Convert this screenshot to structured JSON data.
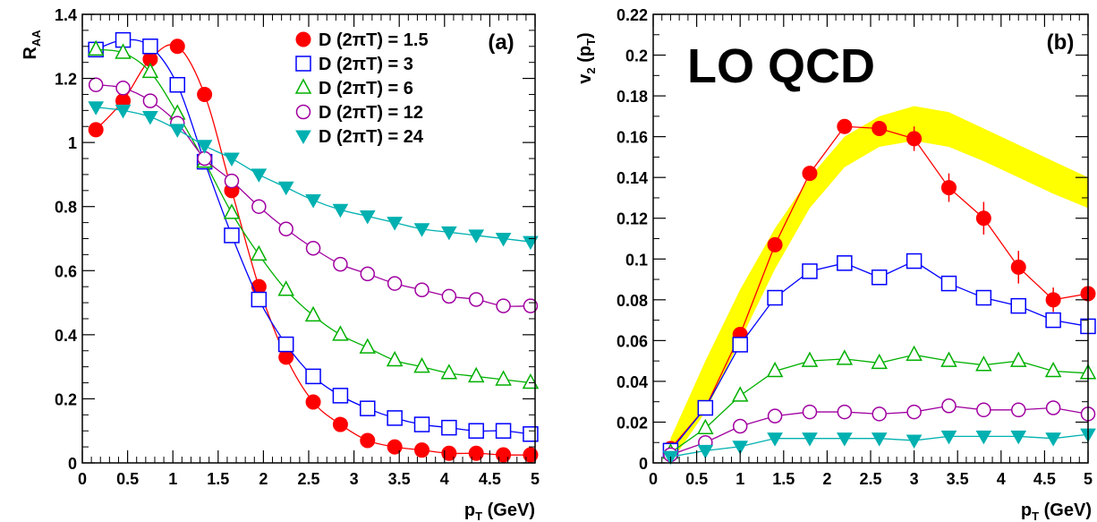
{
  "chart_data": [
    {
      "type": "scatter",
      "panel_label": "(a)",
      "ylabel_main": "R",
      "ylabel_sub": "AA",
      "xlabel_main": "p",
      "xlabel_sub": "T",
      "xlabel_unit": " (GeV)",
      "xlim": [
        0,
        5
      ],
      "ylim": [
        0,
        1.4
      ],
      "xticks": [
        0,
        0.5,
        1,
        1.5,
        2,
        2.5,
        3,
        3.5,
        4,
        4.5,
        5
      ],
      "xtick_labels": [
        "0",
        "0.5",
        "1",
        "1.5",
        "2",
        "2.5",
        "3",
        "3.5",
        "4",
        "4.5",
        "5"
      ],
      "yticks": [
        0,
        0.2,
        0.4,
        0.6,
        0.8,
        1.0,
        1.2,
        1.4
      ],
      "ytick_labels": [
        "0",
        "0.2",
        "0.4",
        "0.6",
        "0.8",
        "1",
        "1.2",
        "1.4"
      ],
      "grid": false,
      "legend": "top-right",
      "series": [
        {
          "name": "D (2πT) = 1.5",
          "color": "#ff0000",
          "marker": "filled-circle",
          "x": [
            0.15,
            0.45,
            0.75,
            1.05,
            1.35,
            1.65,
            1.95,
            2.25,
            2.55,
            2.85,
            3.15,
            3.45,
            3.75,
            4.05,
            4.35,
            4.65,
            4.95
          ],
          "y": [
            1.04,
            1.13,
            1.26,
            1.3,
            1.15,
            0.85,
            0.55,
            0.33,
            0.19,
            0.12,
            0.07,
            0.05,
            0.04,
            0.03,
            0.03,
            0.025,
            0.025
          ]
        },
        {
          "name": "D (2πT) = 3",
          "color": "#0000ff",
          "marker": "open-square",
          "x": [
            0.15,
            0.45,
            0.75,
            1.05,
            1.35,
            1.65,
            1.95,
            2.25,
            2.55,
            2.85,
            3.15,
            3.45,
            3.75,
            4.05,
            4.35,
            4.65,
            4.95
          ],
          "y": [
            1.29,
            1.32,
            1.3,
            1.18,
            0.94,
            0.71,
            0.51,
            0.37,
            0.27,
            0.21,
            0.17,
            0.14,
            0.12,
            0.11,
            0.1,
            0.1,
            0.09
          ]
        },
        {
          "name": "D (2πT) = 6",
          "color": "#00b000",
          "marker": "open-triangle",
          "x": [
            0.15,
            0.45,
            0.75,
            1.05,
            1.35,
            1.65,
            1.95,
            2.25,
            2.55,
            2.85,
            3.15,
            3.45,
            3.75,
            4.05,
            4.35,
            4.65,
            4.95
          ],
          "y": [
            1.29,
            1.28,
            1.22,
            1.09,
            0.94,
            0.78,
            0.65,
            0.54,
            0.46,
            0.4,
            0.36,
            0.32,
            0.3,
            0.28,
            0.27,
            0.26,
            0.25
          ]
        },
        {
          "name": "D (2πT) = 12",
          "color": "#a000a0",
          "marker": "open-circle",
          "x": [
            0.15,
            0.45,
            0.75,
            1.05,
            1.35,
            1.65,
            1.95,
            2.25,
            2.55,
            2.85,
            3.15,
            3.45,
            3.75,
            4.05,
            4.35,
            4.65,
            4.95
          ],
          "y": [
            1.18,
            1.17,
            1.13,
            1.06,
            0.95,
            0.88,
            0.8,
            0.73,
            0.67,
            0.62,
            0.59,
            0.56,
            0.54,
            0.52,
            0.51,
            0.49,
            0.49
          ]
        },
        {
          "name": "D (2πT) = 24",
          "color": "#00b0b0",
          "marker": "filled-triangle-down",
          "x": [
            0.15,
            0.45,
            0.75,
            1.05,
            1.35,
            1.65,
            1.95,
            2.25,
            2.55,
            2.85,
            3.15,
            3.45,
            3.75,
            4.05,
            4.35,
            4.65,
            4.95
          ],
          "y": [
            1.11,
            1.1,
            1.08,
            1.04,
            0.99,
            0.95,
            0.9,
            0.86,
            0.82,
            0.79,
            0.77,
            0.75,
            0.73,
            0.72,
            0.71,
            0.7,
            0.69
          ]
        }
      ]
    },
    {
      "type": "scatter",
      "panel_label": "(b)",
      "annotation": "LO QCD",
      "annotation_color": "#5a5ad8",
      "ylabel_main": "v",
      "ylabel_sub": "2",
      "ylabel_arg_open": " (p",
      "ylabel_arg_sub": "T",
      "ylabel_arg_close": ")",
      "xlabel_main": "p",
      "xlabel_sub": "T",
      "xlabel_unit": " (GeV)",
      "xlim": [
        0,
        5
      ],
      "ylim": [
        0,
        0.22
      ],
      "xticks": [
        0,
        0.5,
        1,
        1.5,
        2,
        2.5,
        3,
        3.5,
        4,
        4.5,
        5
      ],
      "xtick_labels": [
        "0",
        "0.5",
        "1",
        "1.5",
        "2",
        "2.5",
        "3",
        "3.5",
        "4",
        "4.5",
        "5"
      ],
      "yticks": [
        0,
        0.02,
        0.04,
        0.06,
        0.08,
        0.1,
        0.12,
        0.14,
        0.16,
        0.18,
        0.2,
        0.22
      ],
      "ytick_labels": [
        "0",
        "0.02",
        "0.04",
        "0.06",
        "0.08",
        "0.1",
        "0.12",
        "0.14",
        "0.16",
        "0.18",
        "0.2",
        "0.22"
      ],
      "grid": false,
      "band": {
        "color": "#ffff00",
        "x": [
          0.2,
          0.6,
          1.0,
          1.4,
          1.8,
          2.2,
          2.6,
          3.0,
          3.4,
          3.8,
          4.2,
          4.6,
          5.0
        ],
        "y_low": [
          0.0,
          0.025,
          0.06,
          0.095,
          0.125,
          0.145,
          0.155,
          0.158,
          0.155,
          0.148,
          0.14,
          0.132,
          0.125
        ],
        "y_high": [
          0.012,
          0.05,
          0.085,
          0.115,
          0.14,
          0.16,
          0.17,
          0.175,
          0.172,
          0.164,
          0.156,
          0.148,
          0.14
        ]
      },
      "series": [
        {
          "name": "D (2πT) = 1.5",
          "color": "#ff0000",
          "marker": "filled-circle",
          "x": [
            0.2,
            0.6,
            1.0,
            1.4,
            1.8,
            2.2,
            2.6,
            3.0,
            3.4,
            3.8,
            4.2,
            4.6,
            5.0
          ],
          "y": [
            0.007,
            0.027,
            0.063,
            0.107,
            0.142,
            0.165,
            0.164,
            0.159,
            0.135,
            0.12,
            0.096,
            0.08,
            0.083
          ],
          "err": [
            0.001,
            0.001,
            0.002,
            0.002,
            0.003,
            0.003,
            0.003,
            0.006,
            0.007,
            0.008,
            0.008,
            0.006,
            0.003
          ]
        },
        {
          "name": "D (2πT) = 3",
          "color": "#0000ff",
          "marker": "open-square",
          "x": [
            0.2,
            0.6,
            1.0,
            1.4,
            1.8,
            2.2,
            2.6,
            3.0,
            3.4,
            3.8,
            4.2,
            4.6,
            5.0
          ],
          "y": [
            0.006,
            0.027,
            0.058,
            0.081,
            0.094,
            0.098,
            0.091,
            0.099,
            0.088,
            0.081,
            0.077,
            0.07,
            0.067
          ]
        },
        {
          "name": "D (2πT) = 6",
          "color": "#00b000",
          "marker": "open-triangle",
          "x": [
            0.2,
            0.6,
            1.0,
            1.4,
            1.8,
            2.2,
            2.6,
            3.0,
            3.4,
            3.8,
            4.2,
            4.6,
            5.0
          ],
          "y": [
            0.005,
            0.017,
            0.033,
            0.045,
            0.05,
            0.051,
            0.049,
            0.053,
            0.05,
            0.048,
            0.05,
            0.045,
            0.044
          ]
        },
        {
          "name": "D (2πT) = 12",
          "color": "#a000a0",
          "marker": "open-circle",
          "x": [
            0.2,
            0.6,
            1.0,
            1.4,
            1.8,
            2.2,
            2.6,
            3.0,
            3.4,
            3.8,
            4.2,
            4.6,
            5.0
          ],
          "y": [
            0.004,
            0.01,
            0.018,
            0.023,
            0.025,
            0.025,
            0.024,
            0.025,
            0.028,
            0.026,
            0.026,
            0.027,
            0.024
          ]
        },
        {
          "name": "D (2πT) = 24",
          "color": "#00b0b0",
          "marker": "filled-triangle-down",
          "x": [
            0.2,
            0.6,
            1.0,
            1.4,
            1.8,
            2.2,
            2.6,
            3.0,
            3.4,
            3.8,
            4.2,
            4.6,
            5.0
          ],
          "y": [
            0.003,
            0.006,
            0.008,
            0.012,
            0.012,
            0.012,
            0.012,
            0.011,
            0.013,
            0.013,
            0.013,
            0.012,
            0.014
          ]
        }
      ]
    }
  ]
}
